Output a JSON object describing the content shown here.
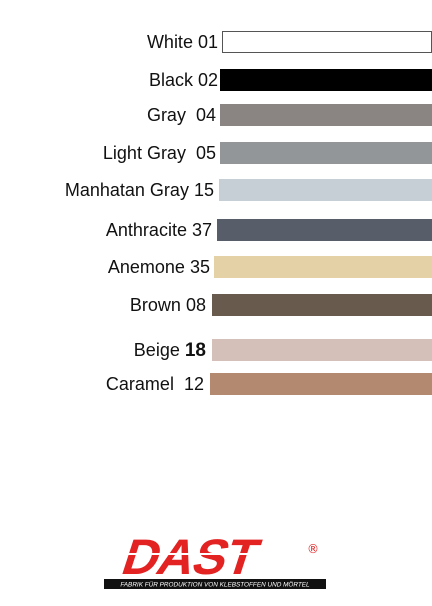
{
  "swatches": [
    {
      "name": "White",
      "code": "01",
      "color": "#ffffff",
      "border": true
    },
    {
      "name": "Black",
      "code": "02",
      "color": "#000000"
    },
    {
      "name": "Gray",
      "code": "04",
      "color": "#8a8582"
    },
    {
      "name": "Light Gray",
      "code": "05",
      "color": "#939699"
    },
    {
      "name": "Manhatan Gray",
      "code": "15",
      "color": "#c6ced6"
    },
    {
      "name": "Anthracite",
      "code": "37",
      "color": "#585e69"
    },
    {
      "name": "Anemone",
      "code": "35",
      "color": "#e4d1a6"
    },
    {
      "name": "Brown",
      "code": "08",
      "color": "#685a4d"
    },
    {
      "name": "Beige",
      "code": "18",
      "color": "#d4c0b8",
      "bold_code": true
    },
    {
      "name": "Caramel",
      "code": "12",
      "color": "#b38a70"
    }
  ],
  "logo": {
    "brand": "DAST",
    "registered": "®",
    "tagline": "FABRIK FÜR PRODUKTION VON KLEBSTOFFEN UND MÖRTEL",
    "color": "#e32222"
  }
}
